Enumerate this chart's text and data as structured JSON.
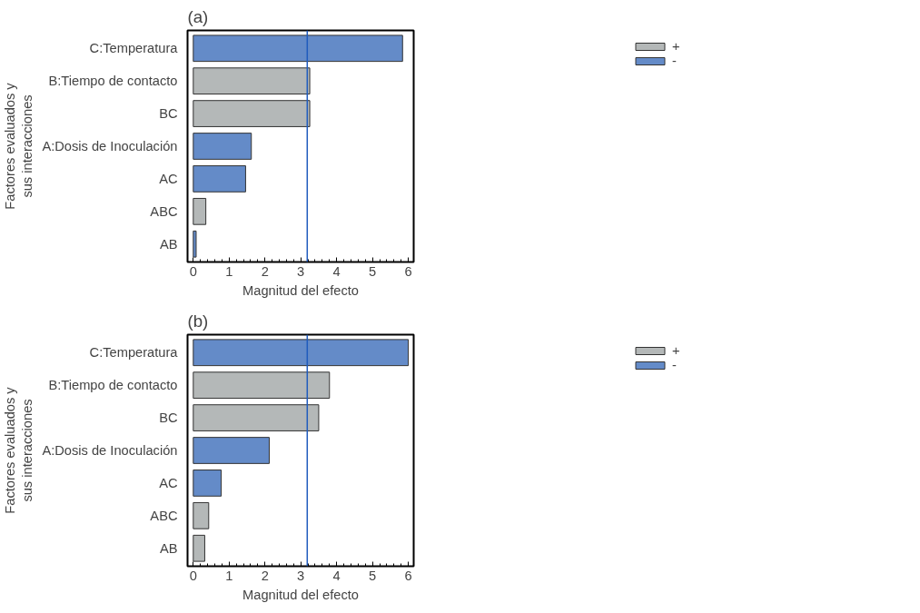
{
  "chart_data": [
    {
      "type": "bar",
      "orientation": "horizontal",
      "title": "(a)",
      "xlabel": "Magnitud del efecto",
      "ylabel": "Factores evaluados y\nsus interacciones",
      "categories": [
        "C:Temperatura",
        "B:Tiempo de contacto",
        "BC",
        "A:Dosis de Inoculación",
        "AC",
        "ABC",
        "AB"
      ],
      "series": [
        {
          "name": "+",
          "color": "#b4b8b8",
          "values": [
            null,
            3.25,
            3.25,
            null,
            null,
            0.35,
            null
          ]
        },
        {
          "name": "-",
          "color": "#648bc8",
          "values": [
            5.84,
            null,
            null,
            1.62,
            1.46,
            null,
            0.08
          ]
        }
      ],
      "xlim": [
        -0.16,
        6.15
      ],
      "xticks": [
        0,
        1,
        2,
        3,
        4,
        5,
        6
      ],
      "ref_lines": [
        {
          "axis": "x",
          "value": 3.18,
          "color": "#1f5bbd"
        }
      ],
      "legend": "top right",
      "grid": false
    },
    {
      "type": "bar",
      "orientation": "horizontal",
      "title": "(b)",
      "xlabel": "Magnitud del efecto",
      "ylabel": "Factores evaluados y\nsus interacciones",
      "categories": [
        "C:Temperatura",
        "B:Tiempo de contacto",
        "BC",
        "A:Dosis de Inoculación",
        "AC",
        "ABC",
        "AB"
      ],
      "series": [
        {
          "name": "+",
          "color": "#b4b8b8",
          "values": [
            null,
            3.8,
            3.5,
            null,
            null,
            0.43,
            0.32
          ]
        },
        {
          "name": "-",
          "color": "#648bc8",
          "values": [
            6.0,
            null,
            null,
            2.12,
            0.78,
            null,
            null
          ]
        }
      ],
      "xlim": [
        -0.16,
        6.15
      ],
      "xticks": [
        0,
        1,
        2,
        3,
        4,
        5,
        6
      ],
      "ref_lines": [
        {
          "axis": "x",
          "value": 3.18,
          "color": "#1f5bbd"
        }
      ],
      "legend": "top right",
      "grid": false
    }
  ]
}
